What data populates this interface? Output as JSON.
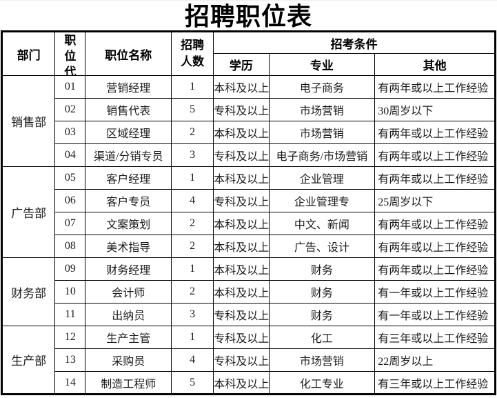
{
  "title": "招聘职位表",
  "header": {
    "department": "部门",
    "code": "职位代",
    "position": "职位名称",
    "count": "招聘人数",
    "conditions": "招考条件",
    "education": "学历",
    "major": "专业",
    "other": "其他"
  },
  "departments": [
    {
      "name": "销售部",
      "rows": [
        {
          "code": "01",
          "position": "营销经理",
          "count": "1",
          "education": "本科及以上",
          "major": "电子商务",
          "other": "有两年或以上工作经验"
        },
        {
          "code": "02",
          "position": "销售代表",
          "count": "5",
          "education": "专科及以上",
          "major": "市场营销",
          "other": "30周岁以下"
        },
        {
          "code": "03",
          "position": "区域经理",
          "count": "2",
          "education": "本科及以上",
          "major": "市场营销",
          "other": "有两年或以上工作经验"
        },
        {
          "code": "04",
          "position": "渠道/分销专员",
          "count": "3",
          "education": "专科及以上",
          "major": "电子商务/市场营销",
          "other": "有两年或以上工作经验"
        }
      ]
    },
    {
      "name": "广告部",
      "rows": [
        {
          "code": "05",
          "position": "客户经理",
          "count": "1",
          "education": "本科及以上",
          "major": "企业管理",
          "other": "有两年或以上工作经验"
        },
        {
          "code": "06",
          "position": "客户专员",
          "count": "4",
          "education": "专科及以上",
          "major": "企业管理专",
          "other": "25周岁以下"
        },
        {
          "code": "07",
          "position": "文案策划",
          "count": "2",
          "education": "本科及以上",
          "major": "中文、新闻",
          "other": "有两年或以上工作经验"
        },
        {
          "code": "08",
          "position": "美术指导",
          "count": "2",
          "education": "本科及以上",
          "major": "广告、设计",
          "other": "有两年或以上工作经验"
        }
      ]
    },
    {
      "name": "财务部",
      "rows": [
        {
          "code": "09",
          "position": "财务经理",
          "count": "1",
          "education": "本科及以上",
          "major": "财务",
          "other": "有两年或以上工作经验"
        },
        {
          "code": "10",
          "position": "会计师",
          "count": "2",
          "education": "本科及以上",
          "major": "财务",
          "other": "有一年或以上工作经验"
        },
        {
          "code": "11",
          "position": "出纳员",
          "count": "3",
          "education": "专科及以上",
          "major": "财务",
          "other": "有一年或以上工作经验"
        }
      ]
    },
    {
      "name": "生产部",
      "rows": [
        {
          "code": "12",
          "position": "生产主管",
          "count": "1",
          "education": "专科及以上",
          "major": "化工",
          "other": "有三年或以上工作经验"
        },
        {
          "code": "13",
          "position": "采购员",
          "count": "4",
          "education": "专科及以上",
          "major": "市场营销",
          "other": "22周岁以上"
        },
        {
          "code": "14",
          "position": "制造工程师",
          "count": "5",
          "education": "本科及以上",
          "major": "化工专业",
          "other": "有三年或以上工作经验"
        }
      ]
    }
  ],
  "colors": {
    "border": "#000000",
    "text": "#1a1a1a",
    "background": "#ffffff"
  }
}
